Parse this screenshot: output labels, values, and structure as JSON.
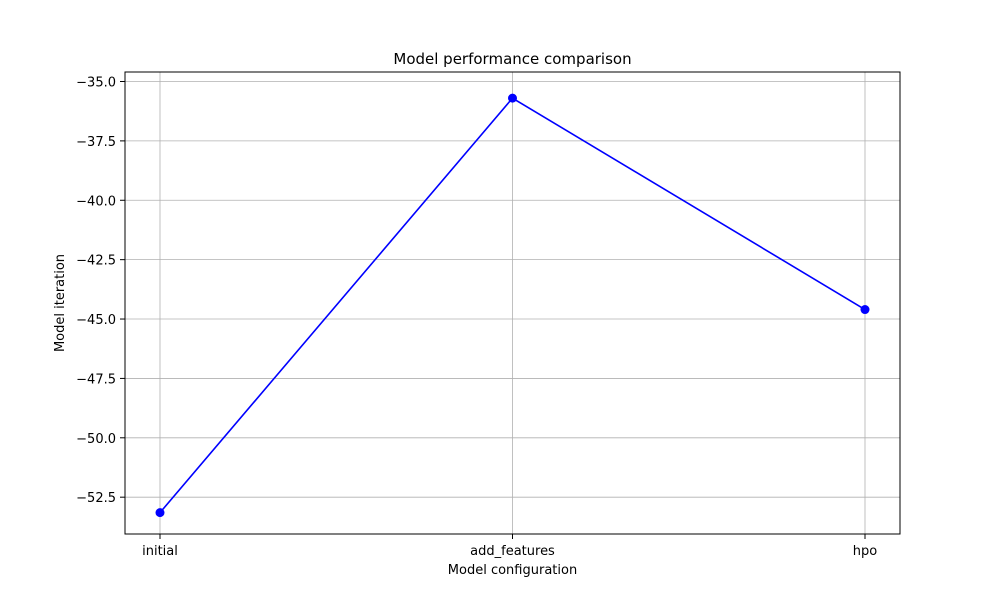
{
  "chart_data": {
    "type": "line",
    "title": "Model performance comparison",
    "xlabel": "Model configuration",
    "ylabel": "Model iteration",
    "categories": [
      "initial",
      "add_features",
      "hpo"
    ],
    "series": [
      {
        "values": [
          -53.15,
          -35.7,
          -44.6
        ],
        "color": "#0000ff",
        "marker": "circle"
      }
    ],
    "ylim": [
      -54.05,
      -34.6
    ],
    "yticks": [
      -52.5,
      -50.0,
      -47.5,
      -45.0,
      -42.5,
      -40.0,
      -37.5,
      -35.0
    ],
    "ytick_labels": [
      "−52.5",
      "−50.0",
      "−47.5",
      "−45.0",
      "−42.5",
      "−40.0",
      "−37.5",
      "−35.0"
    ],
    "grid": true
  }
}
